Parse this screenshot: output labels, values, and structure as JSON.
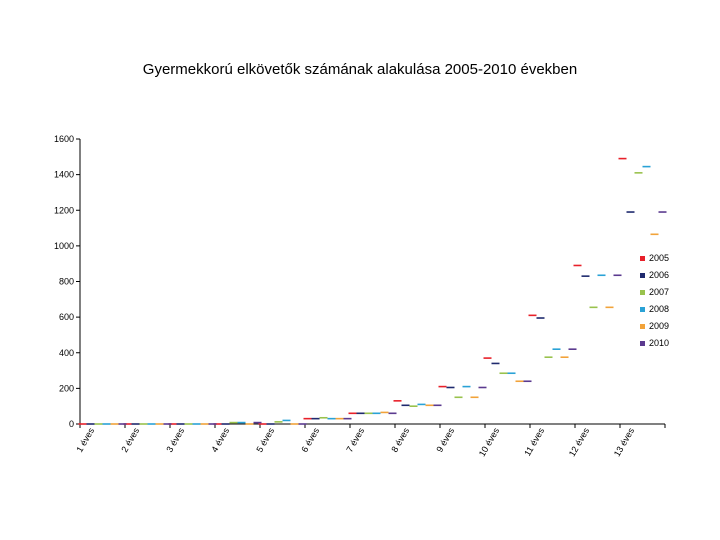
{
  "chart_data": {
    "type": "scatter",
    "title": "Gyermekkorú elkövetők számának alakulása 2005-2010 években",
    "xlabel": "",
    "ylabel": "",
    "ylim": [
      0,
      1600
    ],
    "yticks": [
      0,
      200,
      400,
      600,
      800,
      1000,
      1200,
      1400,
      1600
    ],
    "grid": false,
    "legend": "right",
    "categories": [
      "1 éves",
      "2 éves",
      "3 éves",
      "4 éves",
      "5 éves",
      "6 éves",
      "7 éves",
      "8 éves",
      "9 éves",
      "10 éves",
      "11 éves",
      "12 éves",
      "13 éves"
    ],
    "series": [
      {
        "name": "2005",
        "color": "#e8202a",
        "values": [
          0,
          0,
          0,
          0,
          0,
          30,
          60,
          130,
          210,
          370,
          610,
          890,
          1490
        ]
      },
      {
        "name": "2006",
        "color": "#1f2a6e",
        "values": [
          0,
          0,
          0,
          0,
          0,
          30,
          60,
          105,
          205,
          340,
          595,
          830,
          1190
        ]
      },
      {
        "name": "2007",
        "color": "#99c24d",
        "values": [
          0,
          0,
          0,
          8,
          12,
          35,
          60,
          100,
          150,
          285,
          375,
          655,
          1410
        ]
      },
      {
        "name": "2008",
        "color": "#2aa2d6",
        "values": [
          0,
          0,
          0,
          8,
          20,
          30,
          60,
          110,
          210,
          285,
          420,
          835,
          1445
        ]
      },
      {
        "name": "2009",
        "color": "#f2a33a",
        "values": [
          0,
          0,
          0,
          0,
          0,
          30,
          65,
          105,
          150,
          240,
          375,
          655,
          1065
        ]
      },
      {
        "name": "2010",
        "color": "#5b3a8f",
        "values": [
          0,
          0,
          0,
          8,
          0,
          30,
          60,
          105,
          205,
          240,
          420,
          835,
          1190
        ]
      }
    ]
  }
}
